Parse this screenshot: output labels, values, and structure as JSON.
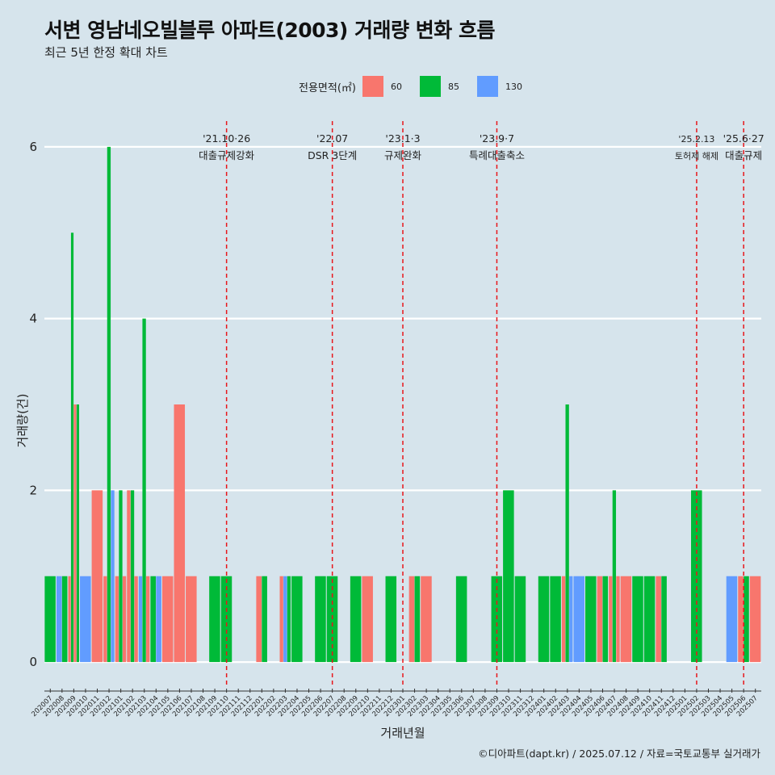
{
  "title": "서변 영남네오빌블루 아파트(2003) 거래량 변화 흐름",
  "subtitle": "최근 5년 한정 확대 차트",
  "legend_title": "전용면적(㎡)",
  "caption": "©디아파트(dapt.kr) / 2025.07.12 / 자료=국토교통부 실거래가",
  "colors": {
    "60": "#f8766d",
    "85": "#00ba38",
    "130": "#619cff",
    "background": "#d6e4ec",
    "vline": "#e8161b"
  },
  "chart_data": {
    "type": "bar",
    "title": "서변 영남네오빌블루 아파트(2003) 거래량 변화 흐름",
    "subtitle": "최근 5년 한정 확대 차트",
    "xlabel": "거래년월",
    "ylabel": "거래량(건)",
    "ylim": [
      -0.3,
      6.3
    ],
    "yticks": [
      0,
      2,
      4,
      6
    ],
    "grid": true,
    "legend_position": "top",
    "categories": [
      "202007",
      "202008",
      "202009",
      "202010",
      "202011",
      "202012",
      "202101",
      "202102",
      "202103",
      "202104",
      "202105",
      "202106",
      "202107",
      "202108",
      "202109",
      "202110",
      "202111",
      "202112",
      "202201",
      "202202",
      "202203",
      "202204",
      "202205",
      "202206",
      "202207",
      "202208",
      "202209",
      "202210",
      "202211",
      "202212",
      "202301",
      "202302",
      "202303",
      "202304",
      "202305",
      "202306",
      "202307",
      "202308",
      "202309",
      "202310",
      "202311",
      "202312",
      "202401",
      "202402",
      "202403",
      "202404",
      "202405",
      "202406",
      "202407",
      "202408",
      "202409",
      "202410",
      "202411",
      "202412",
      "202501",
      "202502",
      "202503",
      "202504",
      "202505",
      "202506",
      "202507"
    ],
    "series_names": [
      "60",
      "85",
      "130"
    ],
    "months": [
      {
        "m": "202007",
        "bars": [
          {
            "s": "85",
            "v": 1
          }
        ]
      },
      {
        "m": "202008",
        "bars": [
          {
            "s": "130",
            "v": 1
          },
          {
            "s": "85",
            "v": 1
          }
        ]
      },
      {
        "m": "202009",
        "bars": [
          {
            "s": "60",
            "v": 1
          },
          {
            "s": "85",
            "v": 5
          },
          {
            "s": "60",
            "v": 3
          },
          {
            "s": "85",
            "v": 3
          }
        ]
      },
      {
        "m": "202010",
        "bars": [
          {
            "s": "130",
            "v": 1
          }
        ]
      },
      {
        "m": "202011",
        "bars": [
          {
            "s": "60",
            "v": 2
          }
        ]
      },
      {
        "m": "202012",
        "bars": [
          {
            "s": "60",
            "v": 1
          },
          {
            "s": "85",
            "v": 6
          },
          {
            "s": "130",
            "v": 2
          }
        ]
      },
      {
        "m": "202101",
        "bars": [
          {
            "s": "60",
            "v": 1
          },
          {
            "s": "85",
            "v": 2
          },
          {
            "s": "60",
            "v": 1
          }
        ]
      },
      {
        "m": "202102",
        "bars": [
          {
            "s": "60",
            "v": 2
          },
          {
            "s": "85",
            "v": 2
          },
          {
            "s": "60",
            "v": 1
          }
        ]
      },
      {
        "m": "202103",
        "bars": [
          {
            "s": "130",
            "v": 1
          },
          {
            "s": "85",
            "v": 4
          },
          {
            "s": "60",
            "v": 1
          }
        ]
      },
      {
        "m": "202104",
        "bars": [
          {
            "s": "85",
            "v": 1
          },
          {
            "s": "130",
            "v": 1
          }
        ]
      },
      {
        "m": "202105",
        "bars": [
          {
            "s": "60",
            "v": 1
          }
        ]
      },
      {
        "m": "202106",
        "bars": [
          {
            "s": "60",
            "v": 3
          }
        ]
      },
      {
        "m": "202107",
        "bars": [
          {
            "s": "60",
            "v": 1
          }
        ]
      },
      {
        "m": "202108",
        "bars": []
      },
      {
        "m": "202109",
        "bars": [
          {
            "s": "85",
            "v": 1
          }
        ]
      },
      {
        "m": "202110",
        "bars": [
          {
            "s": "85",
            "v": 1
          }
        ]
      },
      {
        "m": "202111",
        "bars": []
      },
      {
        "m": "202112",
        "bars": []
      },
      {
        "m": "202201",
        "bars": [
          {
            "s": "60",
            "v": 1
          },
          {
            "s": "85",
            "v": 1
          }
        ]
      },
      {
        "m": "202202",
        "bars": []
      },
      {
        "m": "202203",
        "bars": [
          {
            "s": "60",
            "v": 1
          },
          {
            "s": "130",
            "v": 1
          },
          {
            "s": "85",
            "v": 1
          }
        ]
      },
      {
        "m": "202204",
        "bars": [
          {
            "s": "85",
            "v": 1
          }
        ]
      },
      {
        "m": "202205",
        "bars": []
      },
      {
        "m": "202206",
        "bars": [
          {
            "s": "85",
            "v": 1
          }
        ]
      },
      {
        "m": "202207",
        "bars": [
          {
            "s": "85",
            "v": 1
          }
        ]
      },
      {
        "m": "202208",
        "bars": []
      },
      {
        "m": "202209",
        "bars": [
          {
            "s": "85",
            "v": 1
          }
        ]
      },
      {
        "m": "202210",
        "bars": [
          {
            "s": "60",
            "v": 1
          }
        ]
      },
      {
        "m": "202211",
        "bars": []
      },
      {
        "m": "202212",
        "bars": [
          {
            "s": "85",
            "v": 1
          }
        ]
      },
      {
        "m": "202301",
        "bars": []
      },
      {
        "m": "202302",
        "bars": [
          {
            "s": "60",
            "v": 1
          },
          {
            "s": "85",
            "v": 1
          }
        ]
      },
      {
        "m": "202303",
        "bars": [
          {
            "s": "60",
            "v": 1
          }
        ]
      },
      {
        "m": "202304",
        "bars": []
      },
      {
        "m": "202305",
        "bars": []
      },
      {
        "m": "202306",
        "bars": [
          {
            "s": "85",
            "v": 1
          }
        ]
      },
      {
        "m": "202307",
        "bars": []
      },
      {
        "m": "202308",
        "bars": []
      },
      {
        "m": "202309",
        "bars": [
          {
            "s": "85",
            "v": 1
          }
        ]
      },
      {
        "m": "202310",
        "bars": [
          {
            "s": "85",
            "v": 2
          }
        ]
      },
      {
        "m": "202311",
        "bars": [
          {
            "s": "85",
            "v": 1
          }
        ]
      },
      {
        "m": "202312",
        "bars": []
      },
      {
        "m": "202401",
        "bars": [
          {
            "s": "85",
            "v": 1
          }
        ]
      },
      {
        "m": "202402",
        "bars": [
          {
            "s": "85",
            "v": 1
          }
        ]
      },
      {
        "m": "202403",
        "bars": [
          {
            "s": "60",
            "v": 1
          },
          {
            "s": "85",
            "v": 3
          },
          {
            "s": "130",
            "v": 1
          }
        ]
      },
      {
        "m": "202404",
        "bars": [
          {
            "s": "130",
            "v": 1
          }
        ]
      },
      {
        "m": "202405",
        "bars": [
          {
            "s": "85",
            "v": 1
          }
        ]
      },
      {
        "m": "202406",
        "bars": [
          {
            "s": "60",
            "v": 1
          },
          {
            "s": "85",
            "v": 1
          }
        ]
      },
      {
        "m": "202407",
        "bars": [
          {
            "s": "60",
            "v": 1
          },
          {
            "s": "85",
            "v": 2
          },
          {
            "s": "60",
            "v": 1
          }
        ]
      },
      {
        "m": "202408",
        "bars": [
          {
            "s": "60",
            "v": 1
          }
        ]
      },
      {
        "m": "202409",
        "bars": [
          {
            "s": "85",
            "v": 1
          }
        ]
      },
      {
        "m": "202410",
        "bars": [
          {
            "s": "85",
            "v": 1
          }
        ]
      },
      {
        "m": "202411",
        "bars": [
          {
            "s": "60",
            "v": 1
          },
          {
            "s": "85",
            "v": 1
          }
        ]
      },
      {
        "m": "202412",
        "bars": []
      },
      {
        "m": "202501",
        "bars": []
      },
      {
        "m": "202502",
        "bars": [
          {
            "s": "85",
            "v": 2
          }
        ]
      },
      {
        "m": "202503",
        "bars": []
      },
      {
        "m": "202504",
        "bars": []
      },
      {
        "m": "202505",
        "bars": [
          {
            "s": "130",
            "v": 1
          }
        ]
      },
      {
        "m": "202506",
        "bars": [
          {
            "s": "60",
            "v": 1
          },
          {
            "s": "85",
            "v": 1
          }
        ]
      },
      {
        "m": "202507",
        "bars": [
          {
            "s": "60",
            "v": 1
          }
        ]
      }
    ],
    "events": [
      {
        "x": "202110",
        "x_offset": 0.0,
        "date": "'21.10·26",
        "label": "대출규제강화",
        "size": "normal"
      },
      {
        "x": "202207",
        "x_offset": 0.0,
        "date": "'22.07",
        "label": "DSR 3단계",
        "size": "normal"
      },
      {
        "x": "202301",
        "x_offset": 0.0,
        "date": "'23.1·3",
        "label": "규제완화",
        "size": "normal"
      },
      {
        "x": "202309",
        "x_offset": 0.0,
        "date": "'23.9·7",
        "label": "특례대출축소",
        "size": "normal"
      },
      {
        "x": "202502",
        "x_offset": 0.0,
        "date": "'25.2.13",
        "label": "토허제 해제",
        "size": "small"
      },
      {
        "x": "202506",
        "x_offset": 0.0,
        "date": "'25.6·27",
        "label": "대출규제",
        "size": "normal"
      }
    ]
  }
}
